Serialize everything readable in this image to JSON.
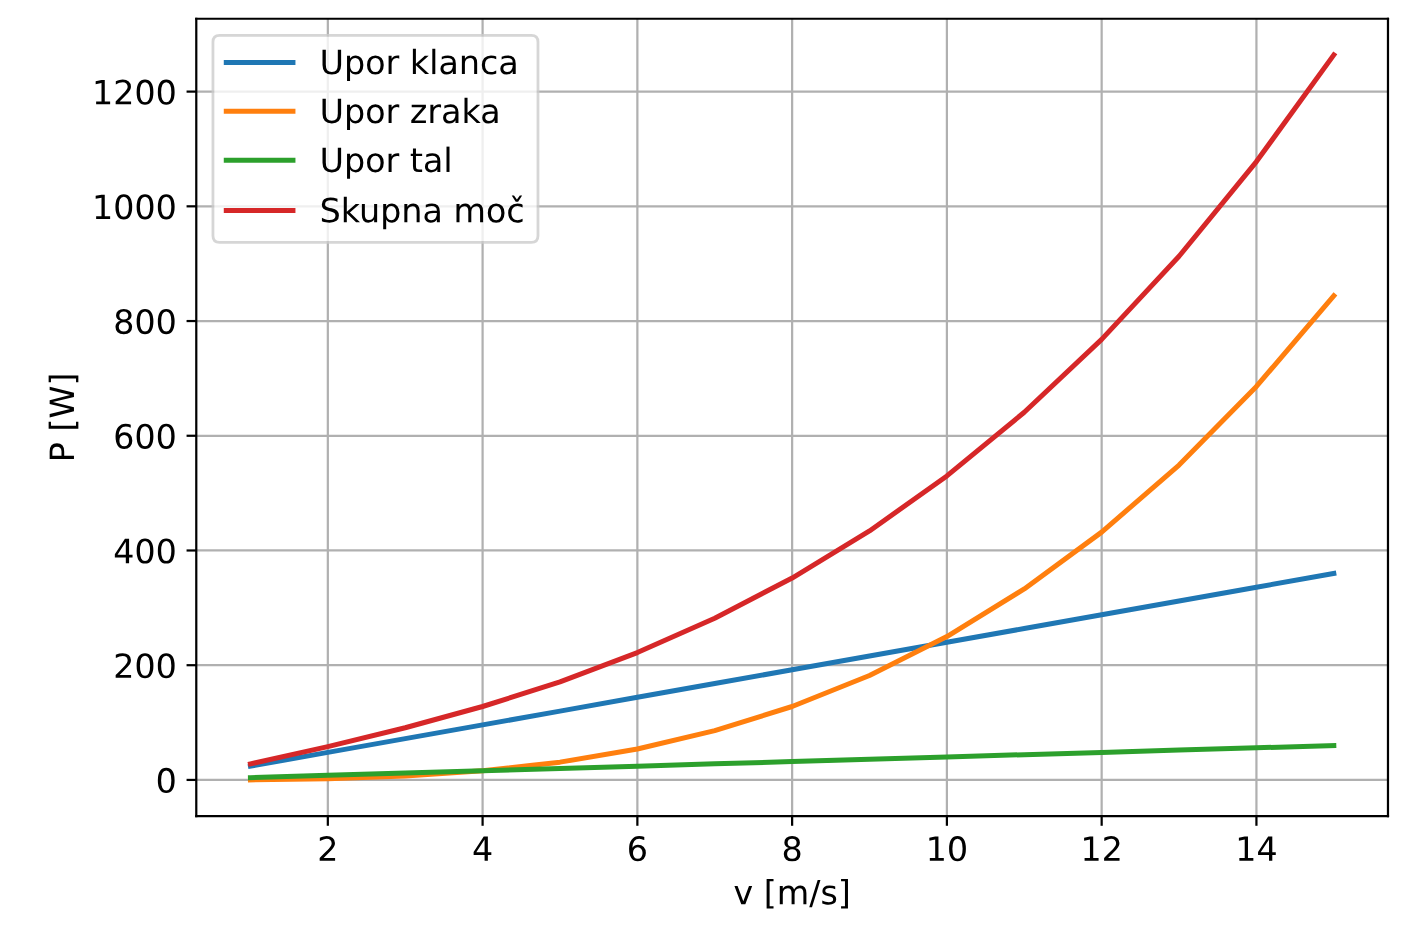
{
  "chart_data": {
    "type": "line",
    "xlabel": "v [m/s]",
    "ylabel": "P [W]",
    "x": [
      1,
      2,
      3,
      4,
      5,
      6,
      7,
      8,
      9,
      10,
      11,
      12,
      13,
      14,
      15
    ],
    "series": [
      {
        "name": "Upor klanca",
        "color": "#1f77b4",
        "values": [
          24,
          48,
          72,
          96,
          120,
          144,
          168,
          192,
          216,
          240,
          264,
          288,
          312,
          336,
          360
        ]
      },
      {
        "name": "Upor zraka",
        "color": "#ff7f0e",
        "values": [
          0,
          2,
          7,
          16,
          31,
          54,
          86,
          128,
          182,
          250,
          333,
          432,
          549,
          686,
          844
        ]
      },
      {
        "name": "Upor tal",
        "color": "#2ca02c",
        "values": [
          4,
          8,
          12,
          16,
          20,
          24,
          28,
          32,
          36,
          40,
          44,
          48,
          52,
          56,
          60
        ]
      },
      {
        "name": "Skupna moč",
        "color": "#d62728",
        "values": [
          28,
          58,
          91,
          128,
          171,
          222,
          282,
          352,
          434,
          530,
          641,
          768,
          913,
          1078,
          1264
        ]
      }
    ],
    "xlim": [
      0.3,
      15.7
    ],
    "ylim": [
      -63,
      1327
    ],
    "xticks": [
      2,
      4,
      6,
      8,
      10,
      12,
      14
    ],
    "yticks": [
      0,
      200,
      400,
      600,
      800,
      1000,
      1200
    ],
    "grid": true,
    "legend": "top left",
    "line_style": "solid"
  }
}
